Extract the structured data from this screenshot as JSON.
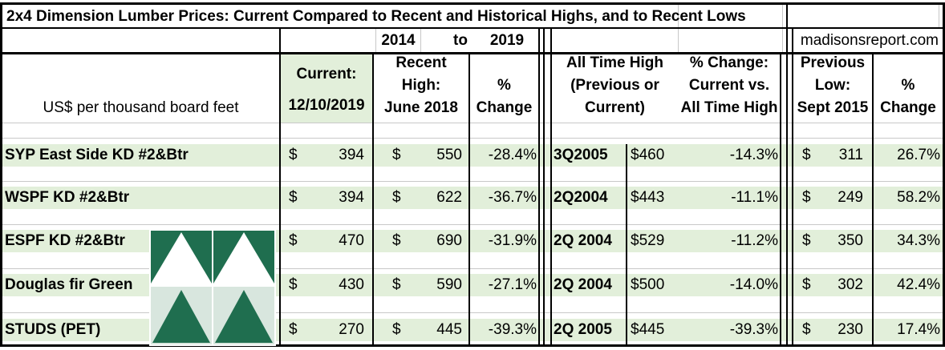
{
  "title": "2x4 Dimension Lumber Prices: Current Compared to Recent and Historical Highs, and to Recent Lows",
  "period": {
    "from": "2014",
    "to_word": "to",
    "to": "2019"
  },
  "source": "madisonsreport.com",
  "units_label": "US$ per thousand board feet",
  "headers": {
    "current": [
      "Current:",
      "12/10/2019"
    ],
    "recent_high": [
      "Recent",
      "High:",
      "June 2018"
    ],
    "pct_change": "%\nChange",
    "pct_word": "%",
    "change_word": "Change",
    "all_time_high": [
      "All Time High",
      "(Previous or",
      "Current)"
    ],
    "pct_vs_ath": [
      "% Change:",
      "Current vs.",
      "All Time High"
    ],
    "prev_low": [
      "Previous",
      "Low:",
      "Sept 2015"
    ]
  },
  "currency_symbol": "$",
  "rows": [
    {
      "name": "SYP East Side KD #2&Btr",
      "current": "394",
      "recent_high": "550",
      "recent_change": "-28.4%",
      "ath_date": "3Q2005",
      "ath_price": "$460",
      "ath_change": "-14.3%",
      "low": "311",
      "low_change": "26.7%"
    },
    {
      "name": "WSPF KD #2&Btr",
      "current": "394",
      "recent_high": "622",
      "recent_change": "-36.7%",
      "ath_date": "2Q2004",
      "ath_price": "$443",
      "ath_change": "-11.1%",
      "low": "249",
      "low_change": "58.2%"
    },
    {
      "name": "ESPF KD #2&Btr",
      "current": "470",
      "recent_high": "690",
      "recent_change": "-31.9%",
      "ath_date": "2Q 2004",
      "ath_price": "$529",
      "ath_change": "-11.2%",
      "low": "350",
      "low_change": "34.3%"
    },
    {
      "name": "Douglas fir Green",
      "current": "430",
      "recent_high": "590",
      "recent_change": "-27.1%",
      "ath_date": "2Q 2004",
      "ath_price": "$500",
      "ath_change": "-14.0%",
      "low": "302",
      "low_change": "42.4%"
    },
    {
      "name": "STUDS (PET)",
      "current": "270",
      "recent_high": "445",
      "recent_change": "-39.3%",
      "ath_date": "2Q 2005",
      "ath_price": "$445",
      "ath_change": "-39.3%",
      "low": "230",
      "low_change": "17.4%"
    }
  ],
  "colors": {
    "band": "#e2efda",
    "logo_green": "#1f6e4f",
    "grid": "#000000"
  },
  "logo_icon": "triangles-logo-icon"
}
